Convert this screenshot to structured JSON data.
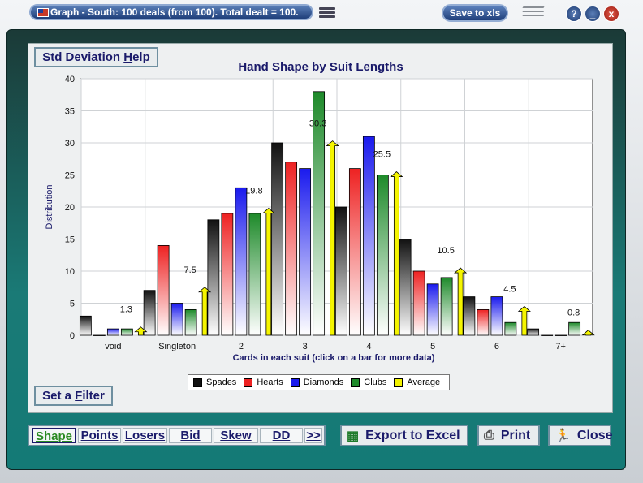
{
  "window": {
    "title": "Graph - South: 100 deals (from 100).  Total dealt = 100.",
    "save_label": "Save to xls",
    "help_label": "?",
    "min_label": "_",
    "close_label": "x"
  },
  "buttons": {
    "std_dev_pre": "Std Deviation ",
    "std_dev_key": "H",
    "std_dev_post": "elp",
    "filter_pre": "Set a ",
    "filter_key": "F",
    "filter_post": "ilter"
  },
  "tabs": [
    "Shape",
    "Points",
    "Losers",
    "Bid",
    "Skew",
    "DD",
    ">>"
  ],
  "actions": {
    "export_label": "Export to Excel",
    "print_label": "Print",
    "close_label": "Close"
  },
  "chart_data": {
    "type": "bar",
    "title": "Hand Shape by Suit Lengths",
    "xlabel": "Cards in each suit (click on a bar for more data)",
    "ylabel": "Distribution",
    "ylim": [
      0,
      40
    ],
    "yticks": [
      0,
      5,
      10,
      15,
      20,
      25,
      30,
      35,
      40
    ],
    "categories": [
      "void",
      "Singleton",
      "2",
      "3",
      "4",
      "5",
      "6",
      "7+"
    ],
    "series": [
      {
        "name": "Spades",
        "color": "#111111",
        "values": [
          3,
          7,
          18,
          30,
          20,
          15,
          6,
          1
        ]
      },
      {
        "name": "Hearts",
        "color": "#ee2222",
        "values": [
          0,
          14,
          19,
          27,
          26,
          10,
          4,
          0
        ]
      },
      {
        "name": "Diamonds",
        "color": "#1a1aee",
        "values": [
          1,
          5,
          23,
          26,
          31,
          8,
          6,
          0
        ]
      },
      {
        "name": "Clubs",
        "color": "#1e8a2a",
        "values": [
          1,
          4,
          19,
          38,
          25,
          9,
          2,
          2
        ]
      },
      {
        "name": "Average",
        "color": "#f2f200",
        "values": [
          1.3,
          7.5,
          19.8,
          30.3,
          25.5,
          10.5,
          4.5,
          0.8
        ]
      }
    ],
    "average_labels": [
      "1.3",
      "7.5",
      "19.8",
      "30.3",
      "25.5",
      "10.5",
      "4.5",
      "0.8"
    ],
    "grid": true,
    "legend_position": "bottom"
  }
}
